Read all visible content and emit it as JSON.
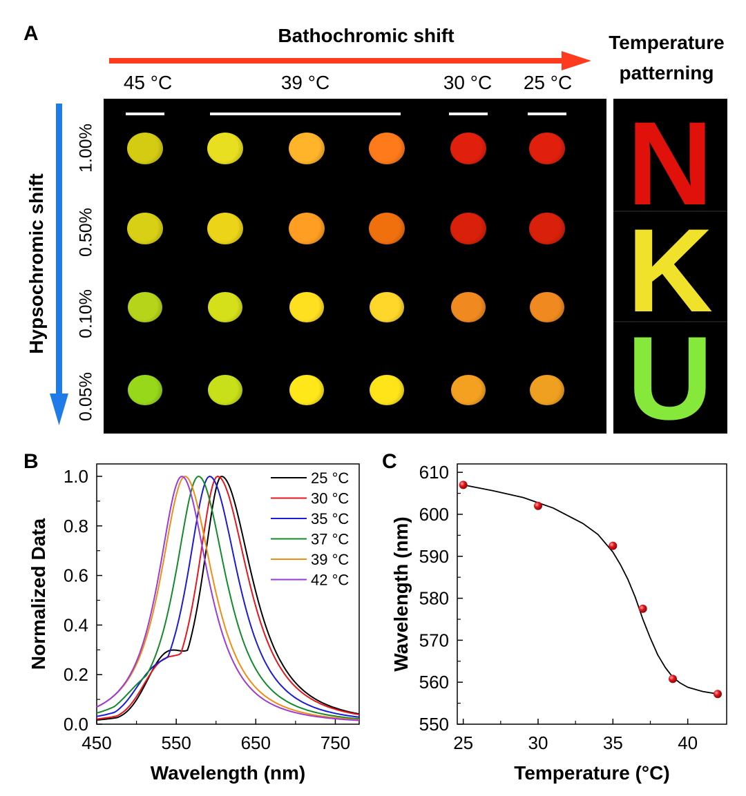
{
  "panel_a": {
    "label": "A",
    "bathochromic_label": "Bathochromic shift",
    "hypsochromic_label": "Hypsochromic shift",
    "patterning_label": "Temperature patterning",
    "temperatures": [
      "45 °C",
      "39 °C",
      "30 °C",
      "25 °C"
    ],
    "concentrations": [
      "1.00%",
      "0.50%",
      "0.10%",
      "0.05%"
    ],
    "letters": [
      "N",
      "K",
      "U"
    ],
    "colors": {
      "arrow_red": "#ff3b1f",
      "arrow_blue": "#1e7be8",
      "letter_n": "#e0100a",
      "letter_k": "#f0e22a",
      "letter_u": "#86e83a"
    },
    "spot_colors": [
      [
        "#d4cc12",
        "#e8df20",
        "#ffb42a",
        "#ff7a1a",
        "#e0200c",
        "#e0200c"
      ],
      [
        "#d8d015",
        "#ecd418",
        "#ff9e22",
        "#f0700e",
        "#d8200a",
        "#d8200a"
      ],
      [
        "#b6d41a",
        "#d6e01a",
        "#ffe020",
        "#ffd62a",
        "#f08a20",
        "#f08a20"
      ],
      [
        "#98d81a",
        "#c8e01a",
        "#ffe81a",
        "#ffe41a",
        "#f4a020",
        "#f0a020"
      ]
    ]
  },
  "chart_data": [
    {
      "panel_label": "B",
      "type": "line",
      "xlabel": "Wavelength (nm)",
      "ylabel": "Normalized Data",
      "xlim": [
        450,
        780
      ],
      "ylim": [
        0.0,
        1.05
      ],
      "xticks": [
        "450",
        "550",
        "650",
        "750"
      ],
      "xtick_values": [
        450,
        550,
        650,
        750
      ],
      "yticks": [
        "0.0",
        "0.2",
        "0.4",
        "0.6",
        "0.8",
        "1.0"
      ],
      "ytick_values": [
        0.0,
        0.2,
        0.4,
        0.6,
        0.8,
        1.0
      ],
      "legend_position": "top-right",
      "series": [
        {
          "name": "25 °C",
          "color": "#000000",
          "peak": 607,
          "left_width": 38,
          "right_width": 60,
          "shoulder": 0.22
        },
        {
          "name": "30 °C",
          "color": "#e8141c",
          "peak": 602,
          "left_width": 40,
          "right_width": 60,
          "shoulder": 0.18
        },
        {
          "name": "35 °C",
          "color": "#1a1ad8",
          "peak": 592,
          "left_width": 44,
          "right_width": 56,
          "shoulder": 0.14
        },
        {
          "name": "37 °C",
          "color": "#128a28",
          "peak": 578,
          "left_width": 46,
          "right_width": 54,
          "shoulder": 0.08
        },
        {
          "name": "39 °C",
          "color": "#f08c10",
          "peak": 561,
          "left_width": 48,
          "right_width": 54,
          "shoulder": 0.0
        },
        {
          "name": "42 °C",
          "color": "#9a3ad8",
          "peak": 557,
          "left_width": 46,
          "right_width": 52,
          "shoulder": 0.0
        }
      ]
    },
    {
      "panel_label": "C",
      "type": "scatter",
      "xlabel": "Temperature (°C)",
      "ylabel": "Wavelength (nm)",
      "xlim": [
        24.6,
        42.6
      ],
      "ylim": [
        550,
        612
      ],
      "xticks": [
        "25",
        "30",
        "35",
        "40"
      ],
      "xtick_values": [
        25,
        30,
        35,
        40
      ],
      "yticks": [
        "550",
        "560",
        "570",
        "580",
        "590",
        "600",
        "610"
      ],
      "ytick_values": [
        550,
        560,
        570,
        580,
        590,
        600,
        610
      ],
      "x": [
        25,
        30,
        35,
        37,
        39,
        42
      ],
      "y": [
        607,
        602,
        592.5,
        577.5,
        560.8,
        557.2
      ],
      "marker_color": "#e8141c",
      "fit_line": {
        "x": [
          25,
          27,
          29,
          31,
          33,
          34,
          35,
          35.5,
          36,
          36.5,
          37,
          37.5,
          38,
          38.5,
          39,
          39.5,
          40,
          41,
          42
        ],
        "y": [
          607,
          605.6,
          604,
          601.5,
          597.8,
          595.2,
          591,
          588,
          584.5,
          580.2,
          575,
          570.5,
          566.5,
          563.5,
          561.2,
          559.8,
          558.8,
          557.8,
          557.2
        ],
        "color": "#000000"
      }
    }
  ]
}
